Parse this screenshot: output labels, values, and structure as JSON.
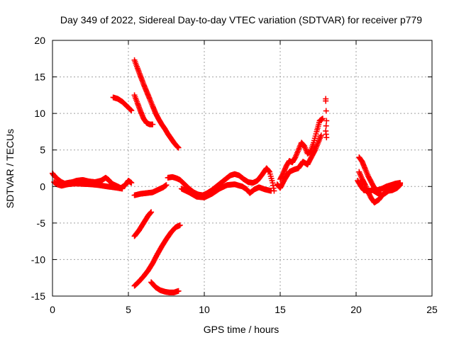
{
  "chart_data": {
    "type": "scatter",
    "title": "Day 349 of 2022, Sidereal Day-to-day VTEC variation (SDTVAR) for receiver p779",
    "xlabel": "GPS time / hours",
    "ylabel": "SDTVAR / TECUs",
    "xlim": [
      0,
      25
    ],
    "ylim": [
      -15,
      20
    ],
    "xticks": [
      "0",
      "5",
      "10",
      "15",
      "20",
      "25"
    ],
    "yticks": [
      "-15",
      "-10",
      "-5",
      "0",
      "5",
      "10",
      "15",
      "20"
    ],
    "grid": true,
    "marker": "+",
    "series_color": "#ff0000",
    "series": [
      {
        "name": "baseline-0-5.3",
        "points": [
          [
            0.0,
            1.8
          ],
          [
            0.1,
            1.5
          ],
          [
            0.25,
            1.2
          ],
          [
            0.4,
            0.9
          ],
          [
            0.6,
            0.6
          ],
          [
            0.8,
            0.4
          ],
          [
            1.0,
            0.5
          ],
          [
            1.3,
            0.6
          ],
          [
            1.6,
            0.8
          ],
          [
            2.0,
            0.9
          ],
          [
            2.4,
            0.7
          ],
          [
            2.8,
            0.6
          ],
          [
            3.2,
            0.8
          ],
          [
            3.5,
            1.2
          ],
          [
            3.7,
            0.9
          ],
          [
            3.9,
            0.4
          ],
          [
            4.2,
            0.1
          ],
          [
            4.5,
            -0.2
          ],
          [
            4.8,
            0.2
          ],
          [
            5.0,
            0.8
          ],
          [
            5.2,
            0.5
          ]
        ]
      },
      {
        "name": "baseline-0-low",
        "points": [
          [
            0.1,
            0.6
          ],
          [
            0.3,
            0.3
          ],
          [
            0.6,
            0.1
          ],
          [
            1.0,
            0.3
          ],
          [
            1.5,
            0.4
          ],
          [
            2.5,
            0.3
          ],
          [
            3.0,
            0.2
          ],
          [
            3.6,
            0.0
          ],
          [
            4.0,
            -0.1
          ],
          [
            4.6,
            -0.3
          ]
        ]
      },
      {
        "name": "arc-4-12",
        "points": [
          [
            4.0,
            12.2
          ],
          [
            4.3,
            12.0
          ],
          [
            4.6,
            11.6
          ],
          [
            4.9,
            11.0
          ],
          [
            5.2,
            10.4
          ]
        ]
      },
      {
        "name": "arc-5.4-17",
        "points": [
          [
            5.4,
            17.3
          ],
          [
            5.6,
            16.2
          ],
          [
            5.8,
            15.1
          ],
          [
            6.0,
            14.0
          ],
          [
            6.2,
            13.0
          ],
          [
            6.4,
            12.0
          ],
          [
            6.6,
            11.0
          ],
          [
            6.8,
            10.0
          ],
          [
            7.0,
            9.2
          ],
          [
            7.2,
            8.5
          ],
          [
            7.4,
            7.9
          ],
          [
            7.6,
            7.2
          ],
          [
            7.8,
            6.6
          ],
          [
            8.0,
            6.0
          ],
          [
            8.2,
            5.5
          ],
          [
            8.3,
            5.3
          ]
        ]
      },
      {
        "name": "arc-5.4-12",
        "points": [
          [
            5.4,
            12.5
          ],
          [
            5.6,
            11.4
          ],
          [
            5.8,
            10.3
          ],
          [
            6.0,
            9.3
          ],
          [
            6.2,
            8.7
          ],
          [
            6.4,
            8.5
          ],
          [
            6.6,
            8.5
          ]
        ]
      },
      {
        "name": "arc-5.4-neg1",
        "points": [
          [
            5.4,
            -1.2
          ],
          [
            5.8,
            -1.0
          ],
          [
            6.2,
            -0.9
          ],
          [
            6.6,
            -0.8
          ],
          [
            7.0,
            -0.4
          ],
          [
            7.3,
            -0.1
          ],
          [
            7.5,
            0.2
          ]
        ]
      },
      {
        "name": "arc-5.4-neg7",
        "points": [
          [
            5.4,
            -6.8
          ],
          [
            5.7,
            -6.0
          ],
          [
            6.0,
            -5.0
          ],
          [
            6.3,
            -4.0
          ],
          [
            6.5,
            -3.5
          ]
        ]
      },
      {
        "name": "arc-5.4-neg13",
        "points": [
          [
            5.4,
            -13.6
          ],
          [
            5.7,
            -13.0
          ],
          [
            6.0,
            -12.3
          ],
          [
            6.3,
            -11.5
          ],
          [
            6.6,
            -10.5
          ],
          [
            6.9,
            -9.3
          ],
          [
            7.2,
            -8.2
          ],
          [
            7.5,
            -7.2
          ],
          [
            7.8,
            -6.3
          ],
          [
            8.1,
            -5.6
          ],
          [
            8.4,
            -5.3
          ]
        ]
      },
      {
        "name": "arc-6.5-neg13",
        "points": [
          [
            6.5,
            -13.1
          ],
          [
            6.8,
            -13.8
          ],
          [
            7.1,
            -14.2
          ],
          [
            7.4,
            -14.4
          ],
          [
            7.7,
            -14.5
          ],
          [
            8.0,
            -14.5
          ],
          [
            8.3,
            -14.3
          ]
        ]
      },
      {
        "name": "baseline-7.6-14.6",
        "points": [
          [
            7.6,
            1.2
          ],
          [
            7.9,
            1.3
          ],
          [
            8.2,
            1.1
          ],
          [
            8.4,
            0.9
          ],
          [
            8.6,
            0.5
          ],
          [
            8.8,
            0.1
          ],
          [
            9.0,
            -0.3
          ],
          [
            9.3,
            -0.8
          ],
          [
            9.6,
            -1.1
          ],
          [
            9.9,
            -1.2
          ],
          [
            10.2,
            -0.9
          ],
          [
            10.5,
            -0.5
          ],
          [
            10.8,
            0.0
          ],
          [
            11.1,
            0.5
          ],
          [
            11.4,
            1.0
          ],
          [
            11.7,
            1.5
          ],
          [
            12.0,
            1.7
          ],
          [
            12.3,
            1.5
          ],
          [
            12.6,
            1.0
          ],
          [
            12.9,
            0.6
          ],
          [
            13.2,
            0.5
          ],
          [
            13.5,
            0.8
          ],
          [
            13.8,
            1.6
          ],
          [
            14.1,
            2.5
          ],
          [
            14.3,
            2.0
          ],
          [
            14.5,
            0.5
          ],
          [
            14.6,
            -0.6
          ]
        ]
      },
      {
        "name": "baseline-8.5-low",
        "points": [
          [
            8.5,
            -0.3
          ],
          [
            9.0,
            -0.8
          ],
          [
            9.5,
            -1.4
          ],
          [
            10.0,
            -1.5
          ],
          [
            10.5,
            -1.0
          ],
          [
            11.0,
            -0.3
          ],
          [
            11.5,
            0.2
          ],
          [
            12.0,
            0.3
          ],
          [
            12.5,
            0.0
          ],
          [
            12.8,
            -0.4
          ],
          [
            13.0,
            -0.9
          ],
          [
            13.3,
            -0.4
          ],
          [
            13.6,
            -0.1
          ],
          [
            14.0,
            -0.4
          ],
          [
            14.4,
            -0.6
          ]
        ]
      },
      {
        "name": "rise-15-18",
        "points": [
          [
            15.0,
            1.0
          ],
          [
            15.2,
            1.8
          ],
          [
            15.4,
            2.8
          ],
          [
            15.6,
            3.5
          ],
          [
            15.8,
            3.3
          ],
          [
            16.0,
            4.0
          ],
          [
            16.2,
            5.0
          ],
          [
            16.4,
            6.0
          ],
          [
            16.6,
            5.5
          ],
          [
            16.8,
            4.5
          ],
          [
            17.0,
            4.8
          ],
          [
            17.2,
            6.0
          ],
          [
            17.4,
            7.5
          ],
          [
            17.6,
            9.0
          ],
          [
            17.8,
            9.3
          ]
        ]
      },
      {
        "name": "rise-15-18-low",
        "points": [
          [
            14.8,
            0.3
          ],
          [
            15.0,
            -0.2
          ],
          [
            15.3,
            1.0
          ],
          [
            15.6,
            2.0
          ],
          [
            15.9,
            2.3
          ],
          [
            16.2,
            2.5
          ],
          [
            16.5,
            3.4
          ],
          [
            16.8,
            3.0
          ],
          [
            17.0,
            3.8
          ],
          [
            17.3,
            5.0
          ],
          [
            17.5,
            6.0
          ],
          [
            17.7,
            7.0
          ]
        ]
      },
      {
        "name": "isolated-18",
        "points": [
          [
            18.0,
            12.0
          ],
          [
            18.0,
            11.7
          ],
          [
            18.05,
            9.0
          ],
          [
            18.0,
            7.6
          ],
          [
            18.05,
            6.7
          ]
        ]
      },
      {
        "name": "cluster-20-23",
        "points": [
          [
            20.2,
            4.0
          ],
          [
            20.4,
            3.4
          ],
          [
            20.6,
            2.4
          ],
          [
            20.8,
            1.4
          ],
          [
            21.0,
            0.6
          ],
          [
            21.2,
            -0.2
          ],
          [
            21.4,
            -0.5
          ],
          [
            21.7,
            -0.3
          ],
          [
            22.0,
            0.0
          ],
          [
            22.3,
            0.2
          ],
          [
            22.6,
            0.4
          ],
          [
            22.9,
            0.5
          ]
        ]
      },
      {
        "name": "cluster-20-23-b",
        "points": [
          [
            20.2,
            2.0
          ],
          [
            20.4,
            1.0
          ],
          [
            20.6,
            0.2
          ],
          [
            20.8,
            -0.8
          ],
          [
            21.0,
            -1.6
          ],
          [
            21.2,
            -2.2
          ],
          [
            21.5,
            -1.8
          ],
          [
            21.8,
            -1.0
          ],
          [
            22.1,
            -0.6
          ],
          [
            22.4,
            -0.5
          ],
          [
            22.7,
            -0.2
          ],
          [
            22.9,
            0.2
          ]
        ]
      },
      {
        "name": "cluster-20-23-c",
        "points": [
          [
            20.1,
            0.8
          ],
          [
            20.3,
            0.1
          ],
          [
            20.5,
            -0.5
          ],
          [
            20.8,
            -0.6
          ],
          [
            21.1,
            -0.5
          ],
          [
            21.4,
            -0.9
          ],
          [
            21.7,
            -1.2
          ],
          [
            22.0,
            -0.8
          ],
          [
            22.3,
            -0.3
          ],
          [
            22.6,
            0.0
          ],
          [
            22.9,
            0.4
          ]
        ]
      }
    ]
  }
}
